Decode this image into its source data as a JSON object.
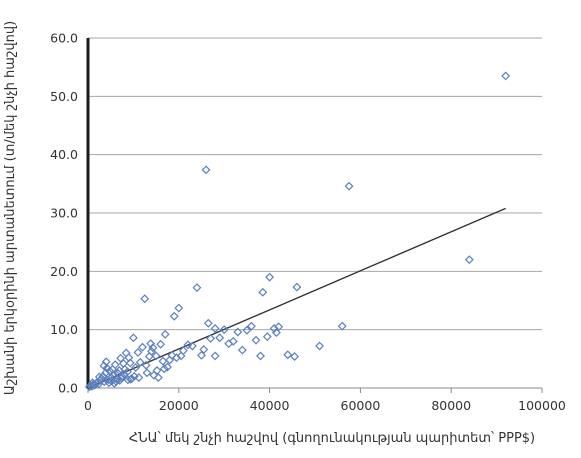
{
  "chart_data": {
    "type": "scatter",
    "title": "",
    "xlabel": "ՀՆԱ՝ մեկ շնչի հաշվով (գնողունակության պարիտետ՝ PPP$)",
    "ylabel": "Աշխանի երկօրինի արտանետում (տ/մեկ շնչի հաշվով)",
    "xlim": [
      0,
      100000
    ],
    "ylim": [
      0,
      60
    ],
    "x_ticks": [
      0,
      20000,
      40000,
      60000,
      80000,
      100000
    ],
    "x_tick_labels": [
      "0",
      "20000",
      "40000",
      "60000",
      "80000",
      "100000"
    ],
    "y_ticks": [
      0,
      10,
      20,
      30,
      40,
      50,
      60
    ],
    "y_tick_labels": [
      "0.0",
      "10.0",
      "20.0",
      "30.0",
      "40.0",
      "50.0",
      "60.0"
    ],
    "grid": "horizontal",
    "legend": "none",
    "marker": "diamond-open",
    "series_color": "#5b7fbf",
    "trendline": {
      "x": [
        0,
        92000
      ],
      "y": [
        0.0,
        30.8
      ],
      "color": "#333333"
    },
    "series": [
      {
        "points": [
          [
            300,
            0.2
          ],
          [
            600,
            0.4
          ],
          [
            900,
            0.3
          ],
          [
            1200,
            0.6
          ],
          [
            1500,
            0.5
          ],
          [
            1800,
            0.8
          ],
          [
            2100,
            1.0
          ],
          [
            2400,
            0.7
          ],
          [
            2700,
            1.3
          ],
          [
            3000,
            1.6
          ],
          [
            3300,
            2.0
          ],
          [
            3600,
            1.1
          ],
          [
            3900,
            2.6
          ],
          [
            4200,
            3.4
          ],
          [
            4500,
            1.4
          ],
          [
            4800,
            2.9
          ],
          [
            5100,
            1.8
          ],
          [
            5400,
            3.2
          ],
          [
            5700,
            2.2
          ],
          [
            6000,
            4.0
          ],
          [
            6300,
            1.5
          ],
          [
            6600,
            2.5
          ],
          [
            6900,
            3.0
          ],
          [
            7200,
            5.1
          ],
          [
            7500,
            2.0
          ],
          [
            7800,
            4.2
          ],
          [
            8100,
            3.2
          ],
          [
            8400,
            6.0
          ],
          [
            8700,
            2.8
          ],
          [
            9000,
            5.2
          ],
          [
            9300,
            4.3
          ],
          [
            9600,
            1.6
          ],
          [
            10000,
            8.6
          ],
          [
            10500,
            3.5
          ],
          [
            11000,
            6.1
          ],
          [
            11500,
            4.4
          ],
          [
            12000,
            7.0
          ],
          [
            12500,
            15.3
          ],
          [
            13000,
            2.6
          ],
          [
            13500,
            5.4
          ],
          [
            14000,
            6.3
          ],
          [
            14500,
            2.2
          ],
          [
            15000,
            5.5
          ],
          [
            15500,
            1.8
          ],
          [
            16000,
            7.5
          ],
          [
            16500,
            4.6
          ],
          [
            17000,
            9.2
          ],
          [
            17500,
            3.6
          ],
          [
            18000,
            4.8
          ],
          [
            18500,
            5.6
          ],
          [
            19000,
            12.3
          ],
          [
            19500,
            5.2
          ],
          [
            20000,
            13.7
          ],
          [
            20500,
            5.5
          ],
          [
            21000,
            6.4
          ],
          [
            22000,
            7.4
          ],
          [
            23000,
            7.2
          ],
          [
            24000,
            17.2
          ],
          [
            25000,
            5.6
          ],
          [
            25500,
            6.6
          ],
          [
            26000,
            37.4
          ],
          [
            26500,
            11.1
          ],
          [
            27000,
            8.5
          ],
          [
            28000,
            10.2
          ],
          [
            28000,
            5.5
          ],
          [
            29000,
            8.6
          ],
          [
            30000,
            10.0
          ],
          [
            31000,
            7.6
          ],
          [
            32000,
            8.0
          ],
          [
            33000,
            9.6
          ],
          [
            34000,
            6.5
          ],
          [
            35000,
            9.9
          ],
          [
            36000,
            10.6
          ],
          [
            37000,
            8.2
          ],
          [
            38000,
            5.5
          ],
          [
            38500,
            16.4
          ],
          [
            39500,
            8.8
          ],
          [
            40000,
            19.0
          ],
          [
            41000,
            10.2
          ],
          [
            41500,
            9.5
          ],
          [
            42000,
            10.5
          ],
          [
            44000,
            5.7
          ],
          [
            45500,
            5.4
          ],
          [
            46000,
            17.3
          ],
          [
            51000,
            7.2
          ],
          [
            56000,
            10.6
          ],
          [
            57500,
            34.6
          ],
          [
            84000,
            22.0
          ],
          [
            92000,
            53.5
          ],
          [
            1000,
            0.9
          ],
          [
            2500,
            1.9
          ],
          [
            3500,
            3.8
          ],
          [
            4000,
            4.5
          ],
          [
            4600,
            0.9
          ],
          [
            5200,
            1.2
          ],
          [
            5800,
            0.8
          ],
          [
            6200,
            1.1
          ],
          [
            7000,
            1.3
          ],
          [
            7400,
            1.7
          ],
          [
            8000,
            2.3
          ],
          [
            8800,
            1.4
          ],
          [
            9400,
            1.5
          ],
          [
            10200,
            2.0
          ],
          [
            11200,
            1.8
          ],
          [
            12800,
            3.9
          ],
          [
            13800,
            7.6
          ],
          [
            14300,
            6.9
          ],
          [
            15200,
            3.0
          ],
          [
            16800,
            3.3
          ]
        ]
      }
    ]
  }
}
